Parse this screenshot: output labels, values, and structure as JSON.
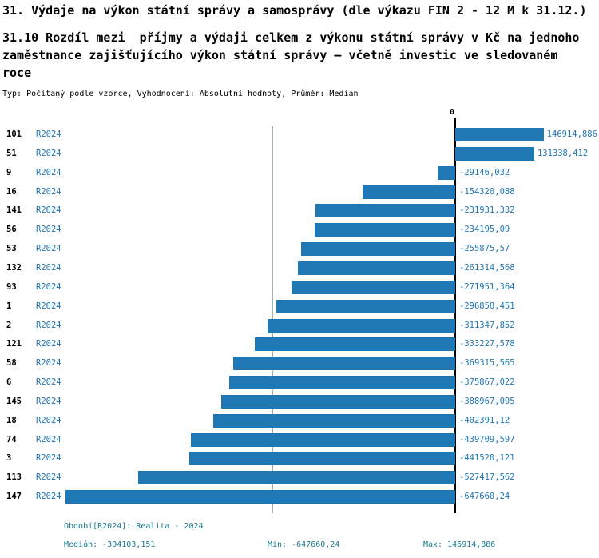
{
  "header": {
    "title": "31. Výdaje na výkon státní správy a samosprávy (dle výkazu FIN 2 - 12 M k 31.12.)",
    "subtitle": "31.10 Rozdíl mezi  příjmy a výdaji celkem z výkonu státní správy v Kč na jednoho zaměstnance zajišťujícího výkon státní správy – včetně investic ve sledovaném roce",
    "meta": "Typ: Počítaný podle vzorce, Vyhodnocení: Absolutní hodnoty, Průměr: Medián"
  },
  "chart_data": {
    "type": "bar",
    "orientation": "horizontal",
    "zero_label": "0",
    "median": -304103.151,
    "axis": {
      "min": -647660.24,
      "max": 146914.886
    },
    "colors": {
      "bar": "#1f77b4",
      "value_label": "#1f77b4",
      "period_label": "#1f77b4",
      "footer": "#1b7a8e"
    },
    "rows": [
      {
        "id": "101",
        "period": "R2024",
        "value": 146914.886,
        "value_label": "146914,886"
      },
      {
        "id": "51",
        "period": "R2024",
        "value": 131338.412,
        "value_label": "131338,412"
      },
      {
        "id": "9",
        "period": "R2024",
        "value": -29146.032,
        "value_label": "-29146,032"
      },
      {
        "id": "16",
        "period": "R2024",
        "value": -154320.088,
        "value_label": "-154320,088"
      },
      {
        "id": "141",
        "period": "R2024",
        "value": -231931.332,
        "value_label": "-231931,332"
      },
      {
        "id": "56",
        "period": "R2024",
        "value": -234195.09,
        "value_label": "-234195,09"
      },
      {
        "id": "53",
        "period": "R2024",
        "value": -255875.57,
        "value_label": "-255875,57"
      },
      {
        "id": "132",
        "period": "R2024",
        "value": -261314.568,
        "value_label": "-261314,568"
      },
      {
        "id": "93",
        "period": "R2024",
        "value": -271951.364,
        "value_label": "-271951,364"
      },
      {
        "id": "1",
        "period": "R2024",
        "value": -296858.451,
        "value_label": "-296858,451"
      },
      {
        "id": "2",
        "period": "R2024",
        "value": -311347.852,
        "value_label": "-311347,852"
      },
      {
        "id": "121",
        "period": "R2024",
        "value": -333227.578,
        "value_label": "-333227,578"
      },
      {
        "id": "58",
        "period": "R2024",
        "value": -369315.565,
        "value_label": "-369315,565"
      },
      {
        "id": "6",
        "period": "R2024",
        "value": -375867.022,
        "value_label": "-375867,022"
      },
      {
        "id": "145",
        "period": "R2024",
        "value": -388967.095,
        "value_label": "-388967,095"
      },
      {
        "id": "18",
        "period": "R2024",
        "value": -402391.12,
        "value_label": "-402391,12"
      },
      {
        "id": "74",
        "period": "R2024",
        "value": -439709.597,
        "value_label": "-439709,597"
      },
      {
        "id": "3",
        "period": "R2024",
        "value": -441520.121,
        "value_label": "-441520,121"
      },
      {
        "id": "113",
        "period": "R2024",
        "value": -527417.562,
        "value_label": "-527417,562"
      },
      {
        "id": "147",
        "period": "R2024",
        "value": -647660.24,
        "value_label": "-647660,24"
      }
    ]
  },
  "footer": {
    "period": "Období[R2024]: Realita - 2024",
    "median": "Medián: -304103,151",
    "min": "Min: -647660,24",
    "max": "Max: 146914,886"
  }
}
